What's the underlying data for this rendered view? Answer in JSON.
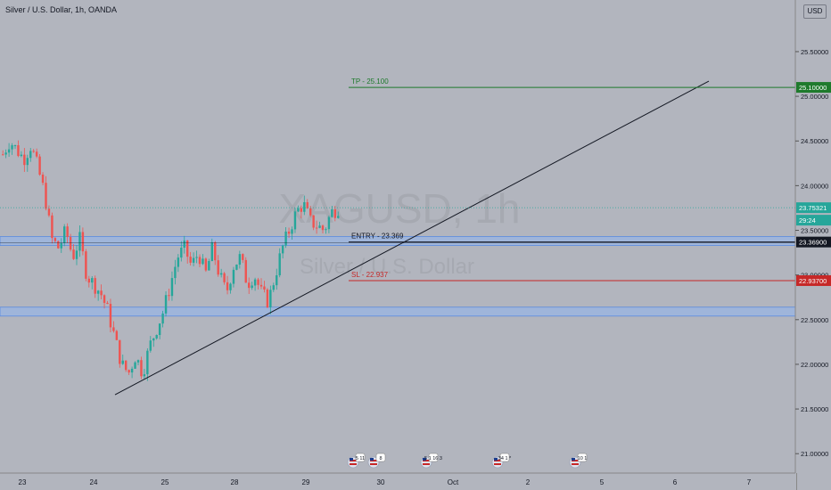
{
  "header": {
    "title": "Silver / U.S. Dollar, 1h, OANDA",
    "currency": "USD"
  },
  "colors": {
    "background": "#b2b5be",
    "bull": "#26a69a",
    "bear": "#ef5350",
    "tp": "#1e7a2c",
    "sl": "#c62828",
    "zone": "#90b5f0",
    "trendline": "#131722"
  },
  "chart_data": {
    "type": "candlestick",
    "symbol": "XAGUSD",
    "interval": "1h",
    "watermark_symbol": "XAGUSD, 1h",
    "watermark_name": "Silver / U.S. Dollar",
    "ylim": [
      20.7,
      25.9
    ],
    "y_ticks": [
      "25.50000",
      "25.00000",
      "24.50000",
      "24.00000",
      "23.50000",
      "23.00000",
      "22.50000",
      "22.00000",
      "21.50000",
      "21.00000"
    ],
    "x_ticks": [
      "23",
      "24",
      "25",
      "28",
      "29",
      "30",
      "Oct",
      "2",
      "5",
      "6",
      "7"
    ],
    "price_labels": [
      {
        "text": "25.10000",
        "kind": "tp"
      },
      {
        "text": "23.75321",
        "kind": "last"
      },
      {
        "text": "29:24",
        "kind": "countdown"
      },
      {
        "text": "23.36900",
        "kind": "entry"
      },
      {
        "text": "22.93700",
        "kind": "sl"
      }
    ],
    "levels": [
      {
        "label": "TP - 25.100",
        "price": 25.1,
        "kind": "tp"
      },
      {
        "label": "ENTRY - 23.369",
        "price": 23.369,
        "kind": "entry"
      },
      {
        "label": "SL - 22.937",
        "price": 22.937,
        "kind": "sl"
      }
    ],
    "last_price": 23.75321,
    "zones": [
      {
        "top": 23.43,
        "bottom": 23.33
      },
      {
        "top": 22.64,
        "bottom": 22.54
      }
    ],
    "trendline": {
      "from": {
        "date": "Sep 24 ~06:00",
        "price": 21.66
      },
      "to": {
        "date": "Oct 6 ~11:00",
        "price": 25.17
      }
    },
    "event_flags": [
      "5 11",
      "8",
      "5 1 16 3",
      "34 1 *",
      "10 1"
    ],
    "candles_close_path": [
      24.35,
      24.5,
      24.4,
      24.3,
      24.45,
      24.2,
      23.9,
      23.4,
      23.3,
      23.5,
      23.2,
      23.4,
      23.0,
      22.9,
      22.8,
      22.6,
      22.3,
      22.0,
      21.9,
      22.1,
      21.9,
      22.2,
      22.4,
      22.6,
      22.9,
      23.2,
      23.3,
      23.1,
      23.25,
      23.0,
      23.3,
      23.0,
      22.8,
      23.1,
      23.2,
      22.9,
      23.0,
      22.8,
      22.7,
      23.0,
      23.3,
      23.5,
      23.7,
      23.8,
      23.6,
      23.55,
      23.5,
      23.7,
      23.75
    ]
  }
}
